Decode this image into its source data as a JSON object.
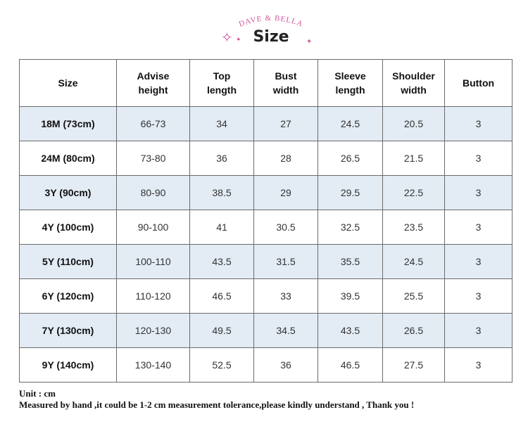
{
  "header": {
    "brand": "DAVE & BELLA",
    "title": "Size",
    "sparkle_big": "✧",
    "sparkle_small": "✦",
    "accent_color": "#d0569a"
  },
  "table": {
    "columns": [
      {
        "line1": "Size",
        "line2": ""
      },
      {
        "line1": "Advise",
        "line2": "height"
      },
      {
        "line1": "Top",
        "line2": "length"
      },
      {
        "line1": "Bust",
        "line2": "width"
      },
      {
        "line1": "Sleeve",
        "line2": "length"
      },
      {
        "line1": "Shoulder",
        "line2": "width"
      },
      {
        "line1": "Button",
        "line2": ""
      }
    ],
    "rows": [
      [
        "18M (73cm)",
        "66-73",
        "34",
        "27",
        "24.5",
        "20.5",
        "3"
      ],
      [
        "24M (80cm)",
        "73-80",
        "36",
        "28",
        "26.5",
        "21.5",
        "3"
      ],
      [
        "3Y (90cm)",
        "80-90",
        "38.5",
        "29",
        "29.5",
        "22.5",
        "3"
      ],
      [
        "4Y (100cm)",
        "90-100",
        "41",
        "30.5",
        "32.5",
        "23.5",
        "3"
      ],
      [
        "5Y (110cm)",
        "100-110",
        "43.5",
        "31.5",
        "35.5",
        "24.5",
        "3"
      ],
      [
        "6Y (120cm)",
        "110-120",
        "46.5",
        "33",
        "39.5",
        "25.5",
        "3"
      ],
      [
        "7Y (130cm)",
        "120-130",
        "49.5",
        "34.5",
        "43.5",
        "26.5",
        "3"
      ],
      [
        "9Y (140cm)",
        "130-140",
        "52.5",
        "36",
        "46.5",
        "27.5",
        "3"
      ]
    ],
    "shaded_row_color": "#e3ebf4"
  },
  "notes": {
    "unit": "Unit : cm",
    "tolerance": "Measured by hand ,it could be 1-2 cm measurement tolerance,please kindly understand , Thank you !"
  }
}
